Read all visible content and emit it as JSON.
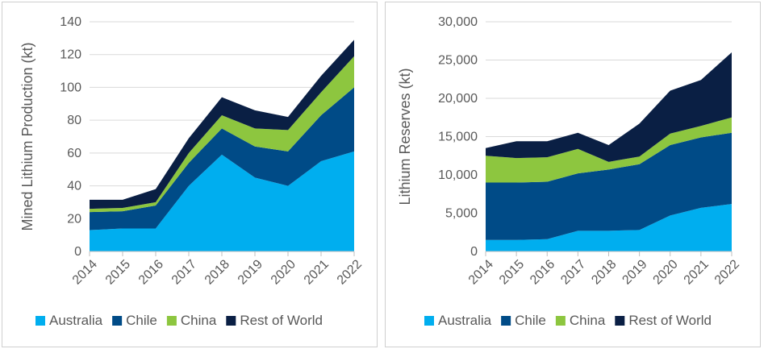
{
  "colors": {
    "Australia": "#00AEEF",
    "Chile": "#004B87",
    "China": "#8DC63F",
    "Rest of World": "#0A1F44"
  },
  "chart_data": [
    {
      "type": "area",
      "stacked": true,
      "title": "",
      "xlabel": "",
      "ylabel": "Mined Lithium Production (kt)",
      "ylim": [
        0,
        140
      ],
      "yticks": [
        0,
        20,
        40,
        60,
        80,
        100,
        120,
        140
      ],
      "ytick_labels": [
        "0",
        "20",
        "40",
        "60",
        "80",
        "100",
        "120",
        "140"
      ],
      "grid": true,
      "legend_position": "bottom",
      "categories": [
        "2014",
        "2015",
        "2016",
        "2017",
        "2018",
        "2019",
        "2020",
        "2021",
        "2022"
      ],
      "series": [
        {
          "name": "Australia",
          "values": [
            13,
            14,
            14,
            40,
            59,
            45,
            40,
            55,
            61
          ]
        },
        {
          "name": "Chile",
          "values": [
            11,
            10.5,
            14,
            14,
            16,
            19,
            21,
            28,
            39
          ]
        },
        {
          "name": "China",
          "values": [
            2,
            2,
            2,
            6,
            8,
            11,
            13,
            14,
            19
          ]
        },
        {
          "name": "Rest of World",
          "values": [
            5.5,
            5,
            8,
            9,
            11,
            11,
            8,
            10,
            10
          ]
        }
      ]
    },
    {
      "type": "area",
      "stacked": true,
      "title": "",
      "xlabel": "",
      "ylabel": "Lithium Reserves (kt)",
      "ylim": [
        0,
        30000
      ],
      "yticks": [
        0,
        5000,
        10000,
        15000,
        20000,
        25000,
        30000
      ],
      "ytick_labels": [
        "0",
        "5,000",
        "10,000",
        "15,000",
        "20,000",
        "25,000",
        "30,000"
      ],
      "grid": true,
      "legend_position": "bottom",
      "categories": [
        "2014",
        "2015",
        "2016",
        "2017",
        "2018",
        "2019",
        "2020",
        "2021",
        "2022"
      ],
      "series": [
        {
          "name": "Australia",
          "values": [
            1500,
            1500,
            1600,
            2700,
            2700,
            2800,
            4700,
            5700,
            6200
          ]
        },
        {
          "name": "Chile",
          "values": [
            7500,
            7500,
            7500,
            7500,
            8000,
            8600,
            9200,
            9200,
            9300
          ]
        },
        {
          "name": "China",
          "values": [
            3500,
            3200,
            3200,
            3200,
            1000,
            1000,
            1500,
            1500,
            2000
          ]
        },
        {
          "name": "Rest of World",
          "values": [
            1000,
            2200,
            2100,
            2100,
            2200,
            4300,
            5600,
            6000,
            8500
          ]
        }
      ]
    }
  ]
}
